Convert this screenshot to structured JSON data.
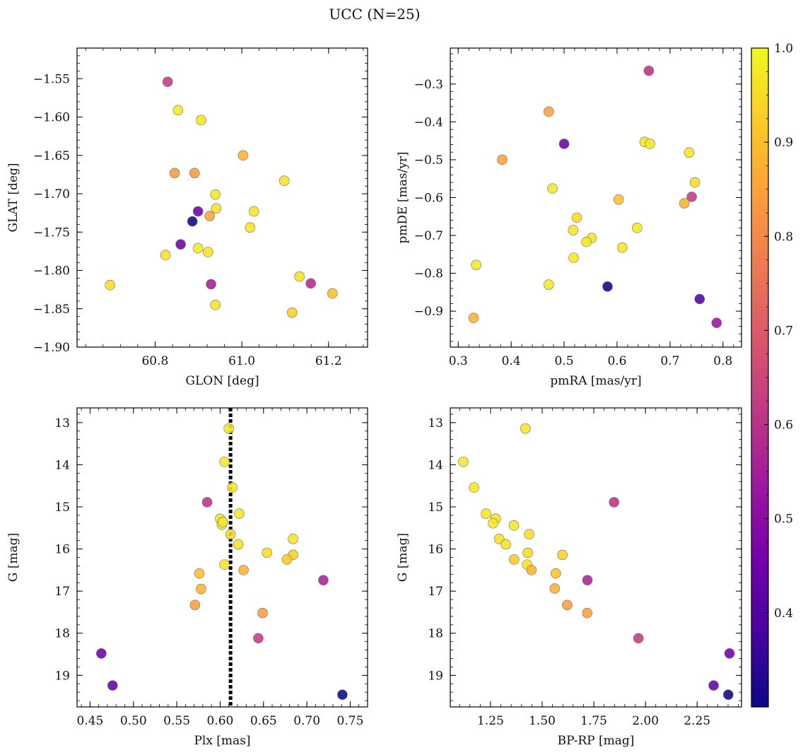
{
  "title": "UCC (N=25)",
  "colormap": "plasma",
  "colorbar": {
    "range": [
      0.3,
      1.0
    ],
    "ticks": [
      0.4,
      0.5,
      0.6,
      0.7,
      0.8,
      0.9,
      1.0
    ],
    "tick_labels": [
      "0.4",
      "0.5",
      "0.6",
      "0.7",
      "0.8",
      "0.9",
      "1.0"
    ],
    "stops": [
      "#0d0887",
      "#46039f",
      "#7201a8",
      "#9c179e",
      "#bd3786",
      "#d8576b",
      "#ed7953",
      "#fb9f3a",
      "#fdca26",
      "#f0f921"
    ]
  },
  "chart_data": [
    {
      "type": "scatter",
      "xlabel": "GLON [deg]",
      "ylabel": "GLAT [deg]",
      "xlim": [
        60.62,
        61.29
      ],
      "ylim": [
        -1.9,
        -1.51
      ],
      "invert_y": false,
      "xticks": [
        60.8,
        61.0,
        61.2
      ],
      "xtick_labels": [
        "60.8",
        "61.0",
        "61.2"
      ],
      "yticks": [
        -1.9,
        -1.85,
        -1.8,
        -1.75,
        -1.7,
        -1.65,
        -1.6,
        -1.55
      ],
      "ytick_labels": [
        "−1.90",
        "−1.85",
        "−1.80",
        "−1.75",
        "−1.70",
        "−1.65",
        "−1.60",
        "−1.55"
      ],
      "points": [
        {
          "x": 60.829,
          "y": -1.554,
          "c": 0.62
        },
        {
          "x": 60.853,
          "y": -1.591,
          "c": 0.97
        },
        {
          "x": 60.906,
          "y": -1.604,
          "c": 0.97
        },
        {
          "x": 61.003,
          "y": -1.65,
          "c": 0.88
        },
        {
          "x": 60.845,
          "y": -1.673,
          "c": 0.83
        },
        {
          "x": 60.891,
          "y": -1.673,
          "c": 0.83
        },
        {
          "x": 61.098,
          "y": -1.683,
          "c": 0.96
        },
        {
          "x": 60.939,
          "y": -1.701,
          "c": 0.97
        },
        {
          "x": 60.941,
          "y": -1.719,
          "c": 0.96
        },
        {
          "x": 60.899,
          "y": -1.723,
          "c": 0.44
        },
        {
          "x": 60.926,
          "y": -1.729,
          "c": 0.85
        },
        {
          "x": 61.028,
          "y": -1.723,
          "c": 0.96
        },
        {
          "x": 60.886,
          "y": -1.736,
          "c": 0.3
        },
        {
          "x": 61.019,
          "y": -1.744,
          "c": 0.96
        },
        {
          "x": 60.859,
          "y": -1.766,
          "c": 0.44
        },
        {
          "x": 60.899,
          "y": -1.771,
          "c": 0.97
        },
        {
          "x": 60.922,
          "y": -1.776,
          "c": 0.96
        },
        {
          "x": 60.824,
          "y": -1.78,
          "c": 0.96
        },
        {
          "x": 61.133,
          "y": -1.808,
          "c": 0.96
        },
        {
          "x": 61.159,
          "y": -1.817,
          "c": 0.58
        },
        {
          "x": 60.929,
          "y": -1.818,
          "c": 0.55
        },
        {
          "x": 60.696,
          "y": -1.819,
          "c": 0.95
        },
        {
          "x": 61.209,
          "y": -1.83,
          "c": 0.9
        },
        {
          "x": 60.939,
          "y": -1.845,
          "c": 0.96
        },
        {
          "x": 61.116,
          "y": -1.855,
          "c": 0.93
        }
      ]
    },
    {
      "type": "scatter",
      "xlabel": "pmRA [mas/yr]",
      "ylabel": "pmDE [mas/yr]",
      "xlim": [
        0.285,
        0.835
      ],
      "ylim": [
        -0.995,
        -0.205
      ],
      "invert_y": false,
      "xticks": [
        0.3,
        0.4,
        0.5,
        0.6,
        0.7,
        0.8
      ],
      "xtick_labels": [
        "0.3",
        "0.4",
        "0.5",
        "0.6",
        "0.7",
        "0.8"
      ],
      "yticks": [
        -0.9,
        -0.8,
        -0.7,
        -0.6,
        -0.5,
        -0.4,
        -0.3
      ],
      "ytick_labels": [
        "−0.9",
        "−0.8",
        "−0.7",
        "−0.6",
        "−0.5",
        "−0.4",
        "−0.3"
      ],
      "points": [
        {
          "x": 0.66,
          "y": -0.265,
          "c": 0.6
        },
        {
          "x": 0.471,
          "y": -0.373,
          "c": 0.85
        },
        {
          "x": 0.5,
          "y": -0.458,
          "c": 0.44
        },
        {
          "x": 0.652,
          "y": -0.453,
          "c": 0.97
        },
        {
          "x": 0.662,
          "y": -0.458,
          "c": 0.97
        },
        {
          "x": 0.736,
          "y": -0.481,
          "c": 0.97
        },
        {
          "x": 0.383,
          "y": -0.5,
          "c": 0.85
        },
        {
          "x": 0.747,
          "y": -0.56,
          "c": 0.95
        },
        {
          "x": 0.478,
          "y": -0.576,
          "c": 0.97
        },
        {
          "x": 0.741,
          "y": -0.598,
          "c": 0.62
        },
        {
          "x": 0.603,
          "y": -0.605,
          "c": 0.9
        },
        {
          "x": 0.727,
          "y": -0.615,
          "c": 0.88
        },
        {
          "x": 0.524,
          "y": -0.653,
          "c": 0.95
        },
        {
          "x": 0.638,
          "y": -0.68,
          "c": 0.97
        },
        {
          "x": 0.517,
          "y": -0.686,
          "c": 0.97
        },
        {
          "x": 0.552,
          "y": -0.707,
          "c": 0.97
        },
        {
          "x": 0.542,
          "y": -0.717,
          "c": 0.97
        },
        {
          "x": 0.61,
          "y": -0.732,
          "c": 0.97
        },
        {
          "x": 0.518,
          "y": -0.759,
          "c": 0.97
        },
        {
          "x": 0.334,
          "y": -0.778,
          "c": 0.97
        },
        {
          "x": 0.471,
          "y": -0.83,
          "c": 0.97
        },
        {
          "x": 0.582,
          "y": -0.835,
          "c": 0.3
        },
        {
          "x": 0.756,
          "y": -0.868,
          "c": 0.4
        },
        {
          "x": 0.329,
          "y": -0.918,
          "c": 0.88
        },
        {
          "x": 0.788,
          "y": -0.931,
          "c": 0.53
        }
      ]
    },
    {
      "type": "scatter",
      "xlabel": "Plx [mas]",
      "ylabel": "G [mag]",
      "xlim": [
        0.435,
        0.77
      ],
      "ylim": [
        19.75,
        12.65
      ],
      "invert_y": true,
      "vline": {
        "x": 0.612,
        "style": "dotted",
        "color": "#000000"
      },
      "xticks": [
        0.45,
        0.5,
        0.55,
        0.6,
        0.65,
        0.7,
        0.75
      ],
      "xtick_labels": [
        "0.45",
        "0.50",
        "0.55",
        "0.60",
        "0.65",
        "0.70",
        "0.75"
      ],
      "yticks": [
        13,
        14,
        15,
        16,
        17,
        18,
        19
      ],
      "ytick_labels": [
        "13",
        "14",
        "15",
        "16",
        "17",
        "18",
        "19"
      ],
      "points": [
        {
          "x": 0.61,
          "y": 13.14,
          "c": 0.97
        },
        {
          "x": 0.605,
          "y": 13.93,
          "c": 0.97
        },
        {
          "x": 0.614,
          "y": 14.54,
          "c": 0.97
        },
        {
          "x": 0.585,
          "y": 14.89,
          "c": 0.6
        },
        {
          "x": 0.6,
          "y": 15.28,
          "c": 0.96
        },
        {
          "x": 0.622,
          "y": 15.16,
          "c": 0.97
        },
        {
          "x": 0.602,
          "y": 15.42,
          "c": 0.97
        },
        {
          "x": 0.603,
          "y": 15.36,
          "c": 0.97
        },
        {
          "x": 0.612,
          "y": 15.65,
          "c": 0.95
        },
        {
          "x": 0.684,
          "y": 15.76,
          "c": 0.96
        },
        {
          "x": 0.621,
          "y": 15.89,
          "c": 0.96
        },
        {
          "x": 0.654,
          "y": 16.09,
          "c": 0.95
        },
        {
          "x": 0.684,
          "y": 16.14,
          "c": 0.93
        },
        {
          "x": 0.677,
          "y": 16.25,
          "c": 0.92
        },
        {
          "x": 0.605,
          "y": 16.37,
          "c": 0.96
        },
        {
          "x": 0.627,
          "y": 16.5,
          "c": 0.88
        },
        {
          "x": 0.576,
          "y": 16.58,
          "c": 0.9
        },
        {
          "x": 0.719,
          "y": 16.74,
          "c": 0.56
        },
        {
          "x": 0.578,
          "y": 16.95,
          "c": 0.88
        },
        {
          "x": 0.571,
          "y": 17.33,
          "c": 0.84
        },
        {
          "x": 0.649,
          "y": 17.52,
          "c": 0.84
        },
        {
          "x": 0.644,
          "y": 18.12,
          "c": 0.62
        },
        {
          "x": 0.463,
          "y": 18.48,
          "c": 0.45
        },
        {
          "x": 0.476,
          "y": 19.24,
          "c": 0.43
        },
        {
          "x": 0.741,
          "y": 19.46,
          "c": 0.3
        }
      ]
    },
    {
      "type": "scatter",
      "xlabel": "BP-RP [mag]",
      "ylabel": "G [mag]",
      "xlim": [
        1.055,
        2.465
      ],
      "ylim": [
        19.75,
        12.65
      ],
      "invert_y": true,
      "xticks": [
        1.25,
        1.5,
        1.75,
        2.0,
        2.25
      ],
      "xtick_labels": [
        "1.25",
        "1.50",
        "1.75",
        "2.00",
        "2.25"
      ],
      "yticks": [
        13,
        14,
        15,
        16,
        17,
        18,
        19
      ],
      "ytick_labels": [
        "13",
        "14",
        "15",
        "16",
        "17",
        "18",
        "19"
      ],
      "points": [
        {
          "x": 1.419,
          "y": 13.14,
          "c": 0.97
        },
        {
          "x": 1.118,
          "y": 13.93,
          "c": 0.97
        },
        {
          "x": 1.17,
          "y": 14.54,
          "c": 0.97
        },
        {
          "x": 1.848,
          "y": 14.89,
          "c": 0.6
        },
        {
          "x": 1.228,
          "y": 15.16,
          "c": 0.97
        },
        {
          "x": 1.275,
          "y": 15.28,
          "c": 0.96
        },
        {
          "x": 1.262,
          "y": 15.39,
          "c": 0.97
        },
        {
          "x": 1.363,
          "y": 15.44,
          "c": 0.97
        },
        {
          "x": 1.437,
          "y": 15.65,
          "c": 0.95
        },
        {
          "x": 1.292,
          "y": 15.76,
          "c": 0.96
        },
        {
          "x": 1.324,
          "y": 15.89,
          "c": 0.96
        },
        {
          "x": 1.43,
          "y": 16.09,
          "c": 0.95
        },
        {
          "x": 1.598,
          "y": 16.14,
          "c": 0.93
        },
        {
          "x": 1.364,
          "y": 16.25,
          "c": 0.92
        },
        {
          "x": 1.427,
          "y": 16.37,
          "c": 0.96
        },
        {
          "x": 1.448,
          "y": 16.5,
          "c": 0.88
        },
        {
          "x": 1.566,
          "y": 16.58,
          "c": 0.9
        },
        {
          "x": 1.719,
          "y": 16.74,
          "c": 0.56
        },
        {
          "x": 1.561,
          "y": 16.94,
          "c": 0.88
        },
        {
          "x": 1.621,
          "y": 17.33,
          "c": 0.84
        },
        {
          "x": 1.718,
          "y": 17.52,
          "c": 0.84
        },
        {
          "x": 1.966,
          "y": 18.12,
          "c": 0.62
        },
        {
          "x": 2.407,
          "y": 18.48,
          "c": 0.45
        },
        {
          "x": 2.33,
          "y": 19.24,
          "c": 0.43
        },
        {
          "x": 2.401,
          "y": 19.46,
          "c": 0.3
        }
      ]
    }
  ]
}
